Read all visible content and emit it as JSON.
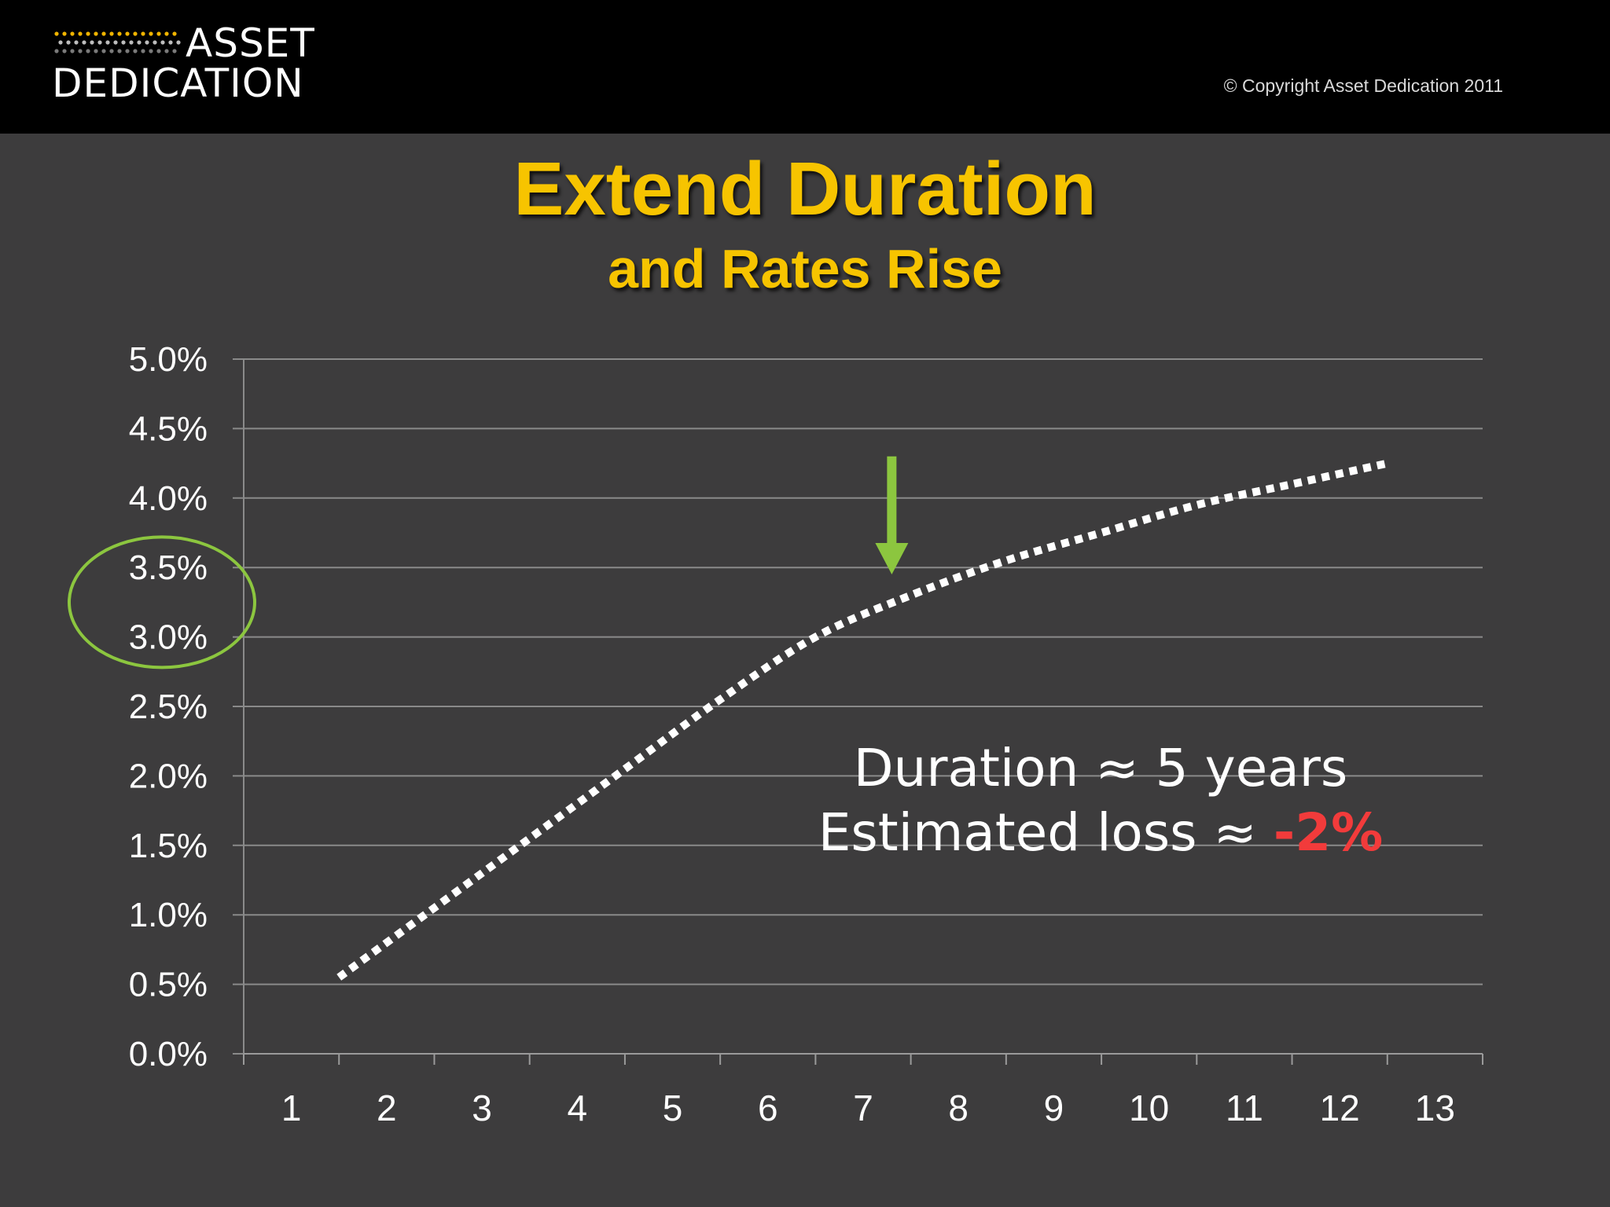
{
  "header": {
    "logo_line1": "ASSET",
    "logo_line2": "DEDICATION",
    "copyright": "© Copyright Asset Dedication 2011"
  },
  "colors": {
    "background": "#3d3c3d",
    "title": "#f7c400",
    "curve": "#ffffff",
    "highlight": "#8cc63f",
    "loss": "#f23b3b"
  },
  "annotation": {
    "line1": "Duration ≈ 5 years",
    "line2_prefix": "Estimated loss ≈ ",
    "line2_value": "-2%"
  },
  "chart_data": {
    "type": "line",
    "title": "Extend Duration",
    "subtitle": "and Rates Rise",
    "xlabel": "",
    "ylabel": "",
    "categories": [
      "1",
      "2",
      "3",
      "4",
      "5",
      "6",
      "7",
      "8",
      "9",
      "10",
      "11",
      "12",
      "13"
    ],
    "yticks": [
      "0.0%",
      "0.5%",
      "1.0%",
      "1.5%",
      "2.0%",
      "2.5%",
      "3.0%",
      "3.5%",
      "4.0%",
      "4.5%",
      "5.0%"
    ],
    "ylim": [
      0,
      5
    ],
    "grid": true,
    "legend": "none",
    "series": [
      {
        "style": "dotted",
        "color": "#ffffff",
        "x": [
          1.5,
          2.5,
          3.5,
          4.5,
          5.5,
          6.5,
          7.5,
          8.5,
          9.5,
          10.5,
          11.5,
          12.5
        ],
        "values": [
          0.55,
          1.05,
          1.55,
          2.05,
          2.55,
          3.0,
          3.3,
          3.55,
          3.75,
          3.95,
          4.1,
          4.25
        ]
      }
    ],
    "annotations": [
      {
        "type": "arrow-down",
        "x": 7.3,
        "y_from": 4.3,
        "y_to": 3.45,
        "color": "#8cc63f"
      },
      {
        "type": "ellipse",
        "y_range": [
          3.0,
          3.5
        ],
        "target": "y-axis-labels",
        "color": "#8cc63f"
      }
    ]
  }
}
